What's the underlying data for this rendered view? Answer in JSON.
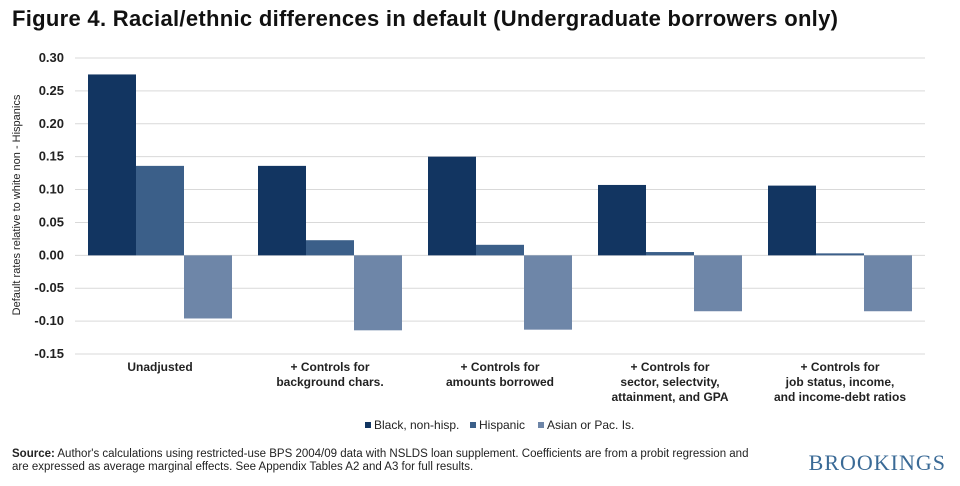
{
  "title": "Figure 4. Racial/ethnic differences in default  (Undergraduate borrowers only)",
  "source_label": "Source:",
  "source_text": "Author's calculations using restricted-use BPS 2004/09 data with NSLDS loan supplement. Coefficients are from a probit regression and are expressed as average marginal effects. See Appendix Tables A2 and A3 for full results.",
  "logo": "BROOKINGS",
  "chart_data": {
    "type": "bar",
    "title": "Figure 4. Racial/ethnic differences in default  (Undergraduate borrowers only)",
    "ylabel": "Default rates relative  to white non - Hispanics",
    "xlabel": "",
    "ylim": [
      -0.15,
      0.3
    ],
    "yticks": [
      "0.30",
      "0.25",
      "0.20",
      "0.15",
      "0.10",
      "0.05",
      "0.00",
      "-0.05",
      "-0.10",
      "-0.15"
    ],
    "grid": true,
    "legend_position": "bottom",
    "categories": [
      [
        "Unadjusted"
      ],
      [
        "+ Controls for",
        "background chars."
      ],
      [
        "+ Controls for",
        "amounts borrowed"
      ],
      [
        "+ Controls for",
        "sector, selectvity,",
        "attainment, and GPA"
      ],
      [
        "+ Controls for",
        "job status, income,",
        "and income-debt ratios"
      ]
    ],
    "series": [
      {
        "name": "Black, non-hisp.",
        "color": "#123561",
        "values": [
          0.275,
          0.136,
          0.15,
          0.107,
          0.106
        ]
      },
      {
        "name": "Hispanic",
        "color": "#3b5f89",
        "values": [
          0.136,
          0.023,
          0.016,
          0.005,
          0.003
        ]
      },
      {
        "name": "Asian or Pac. Is.",
        "color": "#6e86a8",
        "values": [
          -0.096,
          -0.114,
          -0.113,
          -0.085,
          -0.085
        ]
      }
    ]
  }
}
